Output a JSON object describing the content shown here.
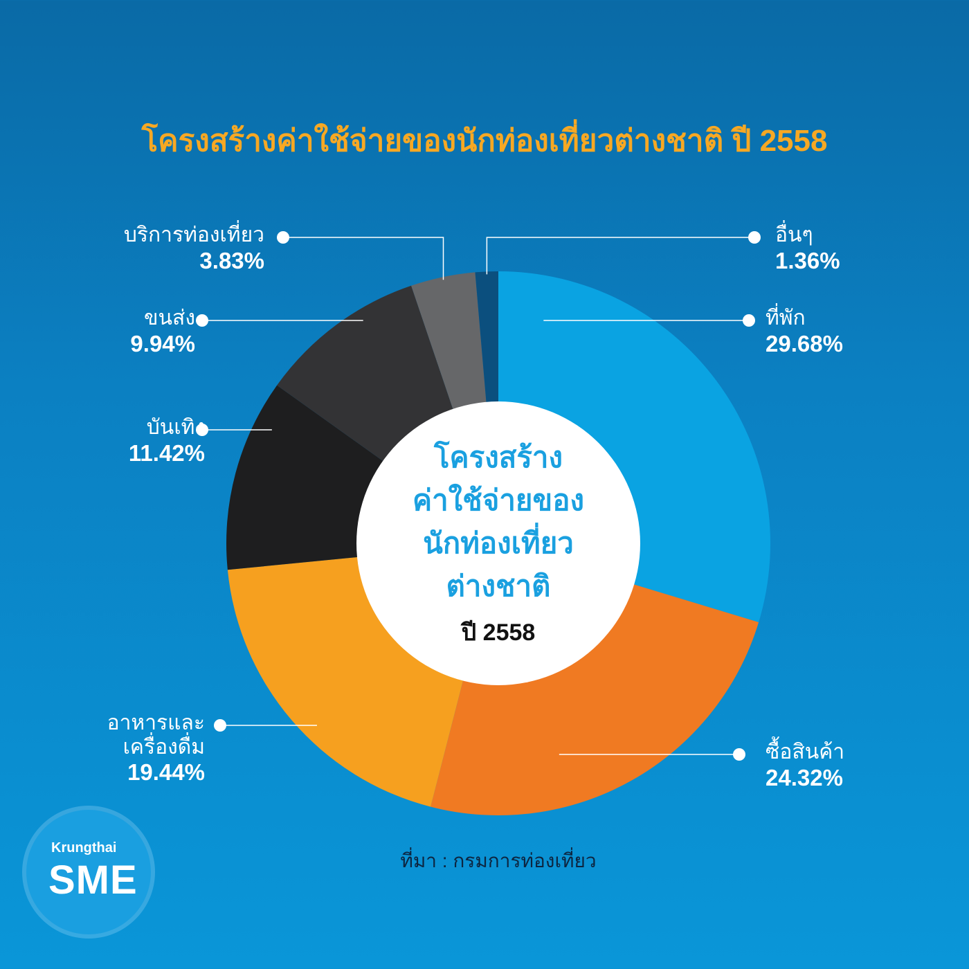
{
  "title": "โครงสร้างค่าใช้จ่ายของนักท่องเที่ยวต่างชาติ ปี 2558",
  "center": {
    "lines": [
      "โครงสร้าง",
      "ค่าใช้จ่ายของ",
      "นักท่องเที่ยว",
      "ต่างชาติ"
    ],
    "year": "ปี 2558"
  },
  "source": "ที่มา : กรมการท่องเที่ยว",
  "logo": {
    "top": "Krungthai",
    "main": "SME"
  },
  "chart_data": {
    "type": "pie",
    "title": "โครงสร้างค่าใช้จ่ายของนักท่องเที่ยวต่างชาติ ปี 2558",
    "series": [
      {
        "label": "ที่พัก",
        "value": 29.68,
        "display": "29.68%",
        "color": "#0aa3e2"
      },
      {
        "label": "ซื้อสินค้า",
        "value": 24.32,
        "display": "24.32%",
        "color": "#f07a22"
      },
      {
        "label": "อาหารและเครื่องดื่ม",
        "label_lines": [
          "อาหารและ",
          "เครื่องดื่ม"
        ],
        "value": 19.44,
        "display": "19.44%",
        "color": "#f6a01f"
      },
      {
        "label": "บันเทิง",
        "value": 11.42,
        "display": "11.42%",
        "color": "#1e1e1f"
      },
      {
        "label": "ขนส่ง",
        "value": 9.94,
        "display": "9.94%",
        "color": "#333335"
      },
      {
        "label": "บริการท่องเที่ยว",
        "value": 3.83,
        "display": "3.83%",
        "color": "#666769"
      },
      {
        "label": "อื่นๆ",
        "value": 1.36,
        "display": "1.36%",
        "color": "#0b4f7e"
      }
    ]
  }
}
